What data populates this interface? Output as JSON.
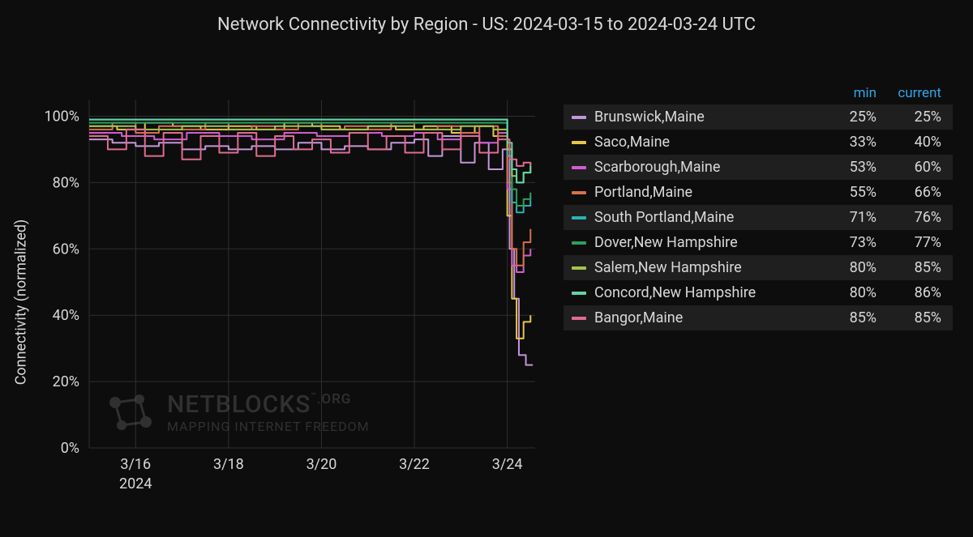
{
  "title": "Network Connectivity by Region - US: 2024-03-15 to 2024-03-24 UTC",
  "ylabel": "Connectivity (normalized)",
  "background_color": "#0d0d0d",
  "grid_color": "#2f2f2f",
  "axis_text_color": "#d8d8d8",
  "header_color": "#33a2e5",
  "legend_header": {
    "min": "min",
    "current": "current"
  },
  "watermark": {
    "brand": "NETBLOCKS",
    "suffix": ".ORG",
    "tm": "™",
    "tagline": "MAPPING INTERNET FREEDOM"
  },
  "chart": {
    "type": "line",
    "x_domain": [
      0,
      9.6
    ],
    "y_domain": [
      0,
      105
    ],
    "y_ticks": [
      0,
      20,
      40,
      60,
      80,
      100
    ],
    "y_tick_labels": [
      "0%",
      "20%",
      "40%",
      "60%",
      "80%",
      "100%"
    ],
    "x_ticks": [
      1,
      3,
      5,
      7,
      9
    ],
    "x_tick_labels": [
      "3/16",
      "3/18",
      "3/20",
      "3/22",
      "3/24"
    ],
    "x_year_label": "2024",
    "line_width": 2
  },
  "series": [
    {
      "name": "Brunswick,Maine",
      "color": "#c397d8",
      "min": "25%",
      "current": "25%",
      "points": [
        [
          0,
          93
        ],
        [
          0.5,
          92
        ],
        [
          1,
          91
        ],
        [
          1.5,
          92
        ],
        [
          2,
          90
        ],
        [
          2.5,
          91
        ],
        [
          3,
          90
        ],
        [
          3.5,
          91
        ],
        [
          4,
          90
        ],
        [
          4.5,
          92
        ],
        [
          5,
          90
        ],
        [
          5.5,
          91
        ],
        [
          6,
          90
        ],
        [
          6.5,
          92
        ],
        [
          7,
          93
        ],
        [
          7.3,
          88
        ],
        [
          7.6,
          94
        ],
        [
          8,
          86
        ],
        [
          8.3,
          92
        ],
        [
          8.6,
          84
        ],
        [
          8.9,
          90
        ],
        [
          9.05,
          60
        ],
        [
          9.15,
          45
        ],
        [
          9.25,
          28
        ],
        [
          9.4,
          25
        ],
        [
          9.55,
          25
        ]
      ]
    },
    {
      "name": "Saco,Maine",
      "color": "#e7c547",
      "min": "33%",
      "current": "40%",
      "points": [
        [
          0,
          97
        ],
        [
          0.6,
          96
        ],
        [
          1.2,
          98
        ],
        [
          1.8,
          97
        ],
        [
          2.4,
          96
        ],
        [
          3,
          97
        ],
        [
          3.6,
          96
        ],
        [
          4.2,
          98
        ],
        [
          4.8,
          97
        ],
        [
          5.4,
          96
        ],
        [
          6,
          97
        ],
        [
          6.6,
          96
        ],
        [
          7.2,
          97
        ],
        [
          7.8,
          95
        ],
        [
          8.3,
          97
        ],
        [
          8.7,
          94
        ],
        [
          9.0,
          70
        ],
        [
          9.1,
          45
        ],
        [
          9.2,
          33
        ],
        [
          9.35,
          38
        ],
        [
          9.5,
          40
        ]
      ]
    },
    {
      "name": "Scarborough,Maine",
      "color": "#d15ccf",
      "min": "53%",
      "current": "60%",
      "points": [
        [
          0,
          95
        ],
        [
          0.7,
          94
        ],
        [
          1.4,
          93
        ],
        [
          2.1,
          95
        ],
        [
          2.8,
          94
        ],
        [
          3.5,
          93
        ],
        [
          4.2,
          95
        ],
        [
          4.9,
          94
        ],
        [
          5.6,
          95
        ],
        [
          6.3,
          94
        ],
        [
          7,
          95
        ],
        [
          7.5,
          93
        ],
        [
          8,
          95
        ],
        [
          8.4,
          92
        ],
        [
          8.8,
          95
        ],
        [
          9.0,
          78
        ],
        [
          9.1,
          55
        ],
        [
          9.2,
          53
        ],
        [
          9.35,
          58
        ],
        [
          9.5,
          60
        ]
      ]
    },
    {
      "name": "Portland,Maine",
      "color": "#d4714a",
      "min": "55%",
      "current": "66%",
      "points": [
        [
          0,
          96
        ],
        [
          0.5,
          98
        ],
        [
          1,
          95
        ],
        [
          1.5,
          97
        ],
        [
          2,
          96
        ],
        [
          2.5,
          98
        ],
        [
          3,
          96
        ],
        [
          3.5,
          97
        ],
        [
          4,
          96
        ],
        [
          4.5,
          98
        ],
        [
          5,
          96
        ],
        [
          5.5,
          97
        ],
        [
          6,
          96
        ],
        [
          6.5,
          98
        ],
        [
          7,
          96
        ],
        [
          7.5,
          97
        ],
        [
          8,
          95
        ],
        [
          8.4,
          97
        ],
        [
          8.8,
          94
        ],
        [
          9.0,
          80
        ],
        [
          9.1,
          60
        ],
        [
          9.2,
          55
        ],
        [
          9.35,
          62
        ],
        [
          9.5,
          66
        ]
      ]
    },
    {
      "name": "South Portland,Maine",
      "color": "#2bb2b2",
      "min": "71%",
      "current": "76%",
      "points": [
        [
          0,
          99
        ],
        [
          1,
          99
        ],
        [
          2,
          99
        ],
        [
          3,
          99
        ],
        [
          4,
          99
        ],
        [
          5,
          99
        ],
        [
          6,
          99
        ],
        [
          7,
          99
        ],
        [
          8,
          99
        ],
        [
          8.6,
          99
        ],
        [
          9.0,
          88
        ],
        [
          9.1,
          74
        ],
        [
          9.2,
          71
        ],
        [
          9.35,
          73
        ],
        [
          9.5,
          76
        ]
      ]
    },
    {
      "name": "Dover,New Hampshire",
      "color": "#2e9e5b",
      "min": "73%",
      "current": "77%",
      "points": [
        [
          0,
          98
        ],
        [
          1,
          98
        ],
        [
          2,
          98
        ],
        [
          3,
          98
        ],
        [
          4,
          98
        ],
        [
          5,
          98
        ],
        [
          6,
          98
        ],
        [
          7,
          98
        ],
        [
          8,
          98
        ],
        [
          8.7,
          98
        ],
        [
          9.0,
          90
        ],
        [
          9.1,
          78
        ],
        [
          9.2,
          73
        ],
        [
          9.35,
          75
        ],
        [
          9.5,
          77
        ]
      ]
    },
    {
      "name": "Salem,New Hampshire",
      "color": "#a6c34c",
      "min": "80%",
      "current": "85%",
      "points": [
        [
          0,
          97
        ],
        [
          1,
          96
        ],
        [
          2,
          97
        ],
        [
          3,
          96
        ],
        [
          4,
          97
        ],
        [
          5,
          96
        ],
        [
          6,
          97
        ],
        [
          7,
          96
        ],
        [
          8,
          97
        ],
        [
          8.7,
          96
        ],
        [
          9.0,
          90
        ],
        [
          9.1,
          82
        ],
        [
          9.2,
          80
        ],
        [
          9.35,
          83
        ],
        [
          9.5,
          85
        ]
      ]
    },
    {
      "name": "Concord,New Hampshire",
      "color": "#5fd7a7",
      "min": "80%",
      "current": "86%",
      "points": [
        [
          0,
          99
        ],
        [
          1,
          99
        ],
        [
          2,
          99
        ],
        [
          3,
          99
        ],
        [
          4,
          99
        ],
        [
          5,
          99
        ],
        [
          6,
          99
        ],
        [
          7,
          99
        ],
        [
          8,
          99
        ],
        [
          8.8,
          99
        ],
        [
          9.0,
          92
        ],
        [
          9.1,
          84
        ],
        [
          9.2,
          80
        ],
        [
          9.35,
          83
        ],
        [
          9.5,
          86
        ]
      ]
    },
    {
      "name": "Bangor,Maine",
      "color": "#e06c8f",
      "min": "85%",
      "current": "85%",
      "points": [
        [
          0,
          94
        ],
        [
          0.4,
          90
        ],
        [
          0.8,
          96
        ],
        [
          1.2,
          88
        ],
        [
          1.6,
          95
        ],
        [
          2,
          87
        ],
        [
          2.4,
          94
        ],
        [
          2.8,
          89
        ],
        [
          3.2,
          95
        ],
        [
          3.6,
          88
        ],
        [
          4,
          94
        ],
        [
          4.4,
          90
        ],
        [
          4.8,
          93
        ],
        [
          5.2,
          89
        ],
        [
          5.6,
          95
        ],
        [
          6,
          90
        ],
        [
          6.4,
          94
        ],
        [
          6.8,
          89
        ],
        [
          7.2,
          95
        ],
        [
          7.6,
          90
        ],
        [
          8,
          94
        ],
        [
          8.4,
          89
        ],
        [
          8.8,
          93
        ],
        [
          9.05,
          87
        ],
        [
          9.2,
          85
        ],
        [
          9.35,
          86
        ],
        [
          9.5,
          85
        ]
      ]
    }
  ]
}
